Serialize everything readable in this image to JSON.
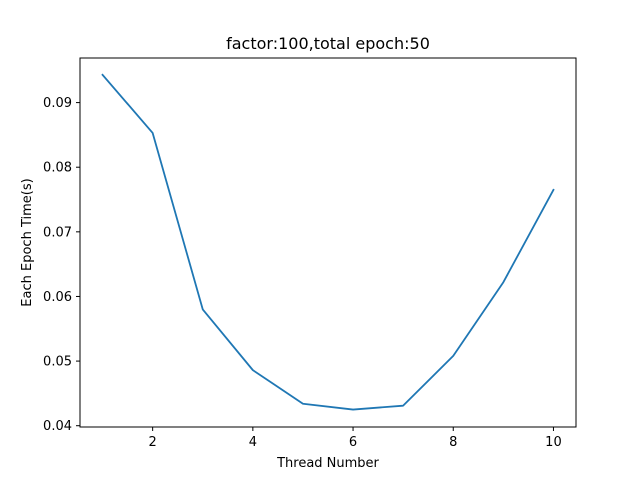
{
  "chart_data": {
    "type": "line",
    "title": "factor:100,total epoch:50",
    "xlabel": "Thread Number",
    "ylabel": "Each Epoch Time(s)",
    "xlim": [
      0.55,
      10.45
    ],
    "ylim": [
      0.0398,
      0.0969
    ],
    "xticks": [
      2,
      4,
      6,
      8,
      10
    ],
    "yticks": [
      0.04,
      0.05,
      0.06,
      0.07,
      0.08,
      0.09
    ],
    "xtick_labels": [
      "2",
      "4",
      "6",
      "8",
      "10"
    ],
    "ytick_labels": [
      "0.04",
      "0.05",
      "0.06",
      "0.07",
      "0.08",
      "0.09"
    ],
    "grid": false,
    "legend": "none",
    "series": [
      {
        "color": "#1f77b4",
        "x": [
          1,
          2,
          3,
          4,
          5,
          6,
          7,
          8,
          9,
          10
        ],
        "y": [
          0.0943,
          0.0853,
          0.058,
          0.0486,
          0.0434,
          0.0425,
          0.0431,
          0.0508,
          0.0622,
          0.0765
        ]
      }
    ]
  }
}
